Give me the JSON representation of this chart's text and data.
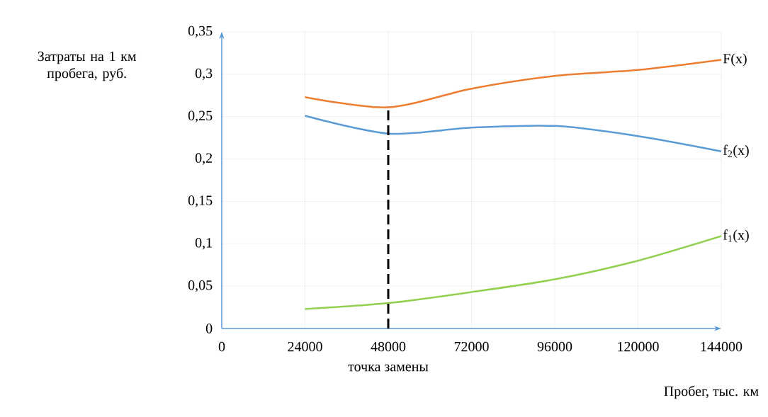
{
  "chart_data": {
    "type": "line",
    "xlabel": "Пробег, тыс. км",
    "ylabel": "Затраты на 1 км пробега, руб.",
    "x": [
      24000,
      48000,
      72000,
      96000,
      120000,
      144000
    ],
    "series": [
      {
        "name": "F(x)",
        "color": "#ed7d31",
        "values": [
          0.273,
          0.261,
          0.283,
          0.298,
          0.305,
          0.317
        ]
      },
      {
        "name": "f$_{2}$(x)",
        "color": "#5b9bd5",
        "values": [
          0.251,
          0.23,
          0.237,
          0.239,
          0.227,
          0.209
        ]
      },
      {
        "name": "f$_{1}$(x)",
        "color": "#92d050",
        "values": [
          0.023,
          0.03,
          0.043,
          0.058,
          0.08,
          0.109
        ]
      }
    ],
    "xlim": [
      0,
      144000
    ],
    "xticks": [
      0,
      24000,
      48000,
      72000,
      96000,
      120000,
      144000
    ],
    "ylim": [
      0,
      0.35
    ],
    "yticks": [
      0,
      {
        "value": 0.05,
        "label": "0,05"
      },
      {
        "value": 0.1,
        "label": "0,1"
      },
      {
        "value": 0.15,
        "label": "0,15"
      },
      {
        "value": 0.2,
        "label": "0,2"
      },
      {
        "value": 0.25,
        "label": "0,25"
      },
      {
        "value": 0.3,
        "label": "0,3"
      },
      {
        "value": 0.35,
        "label": "0,35"
      }
    ],
    "ref_lines": [
      {
        "axis": "x",
        "value": 48000,
        "label": "точка замены",
        "color": "#000000",
        "line_style": "dashed"
      }
    ],
    "grid": true,
    "marker": "none",
    "line_style": "solid"
  }
}
